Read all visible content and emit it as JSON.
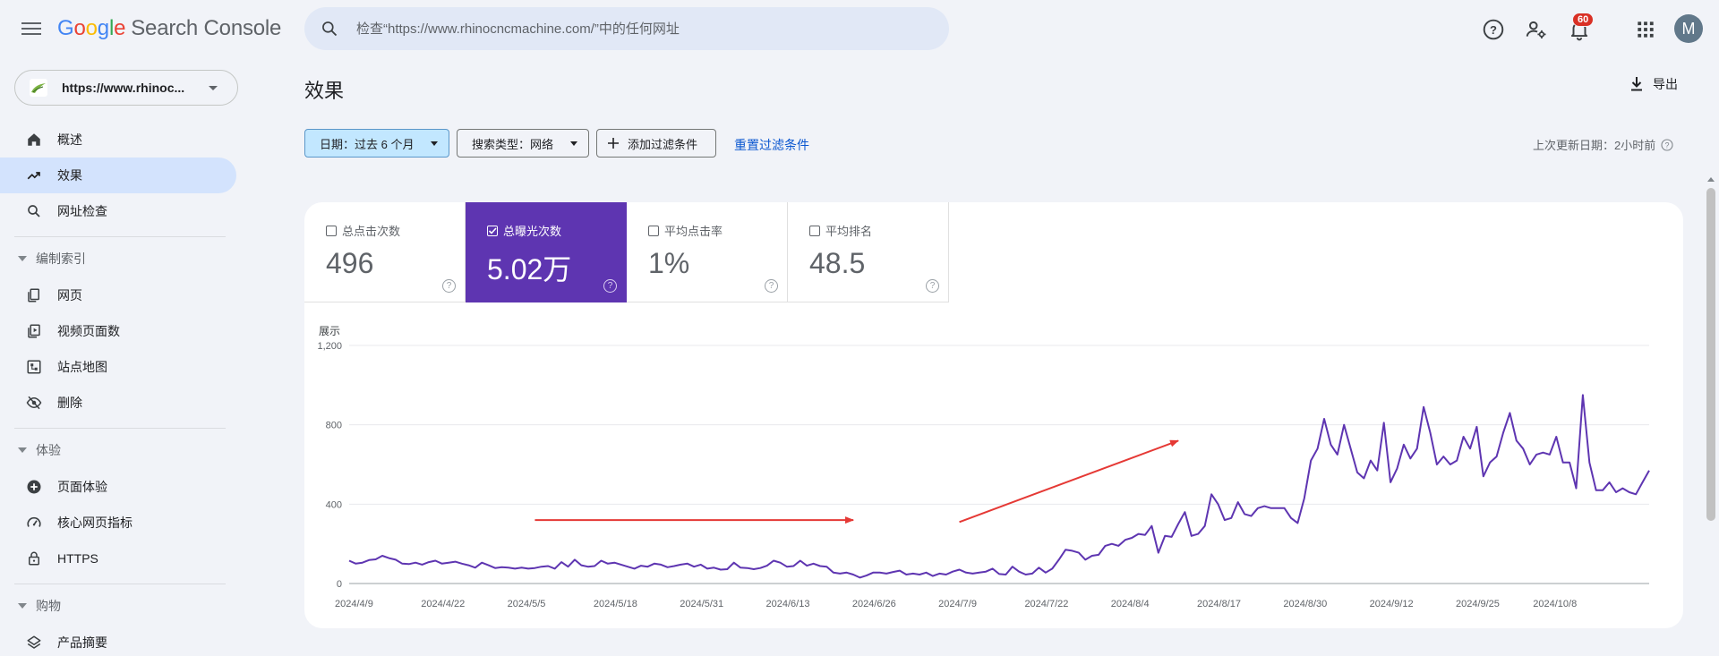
{
  "header": {
    "logo": {
      "g1": "G",
      "g2": "o",
      "g3": "o",
      "g4": "g",
      "g5": "l",
      "g6": "e",
      "product": "Search Console"
    },
    "search_placeholder": "检查“https://www.rhinocncmachine.com/”中的任何网址",
    "notification_count": "60",
    "avatar_initial": "M"
  },
  "sidebar": {
    "property": "https://www.rhinoc...",
    "items": [
      {
        "label": "概述",
        "icon": "home-icon"
      },
      {
        "label": "效果",
        "icon": "trending-up-icon",
        "active": true
      },
      {
        "label": "网址检查",
        "icon": "search-icon"
      }
    ],
    "sections": [
      {
        "title": "编制索引",
        "items": [
          {
            "label": "网页",
            "icon": "pages-icon"
          },
          {
            "label": "视频页面数",
            "icon": "video-pages-icon"
          },
          {
            "label": "站点地图",
            "icon": "sitemap-icon"
          },
          {
            "label": "删除",
            "icon": "removals-icon"
          }
        ]
      },
      {
        "title": "体验",
        "items": [
          {
            "label": "页面体验",
            "icon": "page-experience-icon"
          },
          {
            "label": "核心网页指标",
            "icon": "speed-icon"
          },
          {
            "label": "HTTPS",
            "icon": "lock-icon"
          }
        ]
      },
      {
        "title": "购物",
        "items": [
          {
            "label": "产品摘要",
            "icon": "layers-icon"
          }
        ]
      }
    ]
  },
  "main": {
    "title": "效果",
    "export_label": "导出",
    "filters": {
      "date": "日期：过去 6 个月",
      "search_type": "搜索类型：网络",
      "add_filter": "添加过滤条件",
      "reset": "重置过滤条件"
    },
    "last_updated": "上次更新日期：2小时前",
    "metrics": [
      {
        "label": "总点击次数",
        "value": "496",
        "checked": false
      },
      {
        "label": "总曝光次数",
        "value": "5.02万",
        "checked": true
      },
      {
        "label": "平均点击率",
        "value": "1%",
        "checked": false
      },
      {
        "label": "平均排名",
        "value": "48.5",
        "checked": false
      }
    ],
    "help_glyph": "?"
  },
  "colors": {
    "accent": "#5e35b1",
    "arrow": "#e53935",
    "link": "#0b57d0"
  },
  "chart_data": {
    "type": "line",
    "ylabel": "展示",
    "ylim": [
      0,
      1200
    ],
    "yticks": [
      0,
      400,
      800,
      1200
    ],
    "ytick_labels": [
      "0",
      "400",
      "800",
      "1,200"
    ],
    "xtick_labels": [
      "2024/4/9",
      "2024/4/22",
      "2024/5/5",
      "2024/5/18",
      "2024/5/31",
      "2024/6/13",
      "2024/6/26",
      "2024/7/9",
      "2024/7/22",
      "2024/8/4",
      "2024/8/17",
      "2024/8/30",
      "2024/9/12",
      "2024/9/25",
      "2024/10/8"
    ],
    "grid": true,
    "series": [
      {
        "color": "#5e35b1",
        "values": [
          115,
          100,
          105,
          118,
          122,
          140,
          128,
          120,
          100,
          98,
          105,
          95,
          108,
          115,
          100,
          105,
          110,
          100,
          92,
          80,
          105,
          92,
          78,
          82,
          80,
          75,
          80,
          75,
          78,
          85,
          88,
          75,
          108,
          85,
          120,
          92,
          85,
          88,
          115,
          100,
          105,
          95,
          85,
          75,
          90,
          85,
          100,
          95,
          82,
          88,
          95,
          100,
          85,
          95,
          75,
          80,
          70,
          72,
          105,
          80,
          78,
          72,
          78,
          90,
          115,
          105,
          85,
          88,
          115,
          90,
          100,
          88,
          85,
          55,
          50,
          55,
          45,
          30,
          40,
          55,
          55,
          50,
          58,
          65,
          45,
          50,
          45,
          55,
          38,
          50,
          45,
          60,
          70,
          55,
          50,
          55,
          60,
          75,
          48,
          45,
          85,
          60,
          45,
          50,
          80,
          55,
          75,
          120,
          170,
          165,
          155,
          120,
          140,
          145,
          190,
          200,
          190,
          220,
          230,
          250,
          245,
          290,
          155,
          240,
          235,
          300,
          360,
          240,
          250,
          290,
          450,
          400,
          320,
          330,
          410,
          350,
          340,
          380,
          390,
          380,
          380,
          380,
          330,
          305,
          430,
          620,
          680,
          830,
          700,
          650,
          800,
          680,
          560,
          530,
          620,
          570,
          810,
          510,
          580,
          700,
          630,
          680,
          890,
          760,
          600,
          640,
          600,
          620,
          740,
          680,
          790,
          540,
          610,
          640,
          760,
          860,
          720,
          680,
          600,
          650,
          660,
          650,
          740,
          610,
          610,
          480,
          950,
          610,
          470,
          470,
          510,
          460,
          480,
          460,
          450,
          510,
          570
        ]
      }
    ],
    "annotations": [
      {
        "type": "arrow",
        "from": [
          "2024/5/7",
          320
        ],
        "to": [
          "2024/6/24",
          320
        ]
      },
      {
        "type": "arrow",
        "from": [
          "2024/7/10",
          310
        ],
        "to": [
          "2024/8/12",
          720
        ]
      }
    ]
  }
}
